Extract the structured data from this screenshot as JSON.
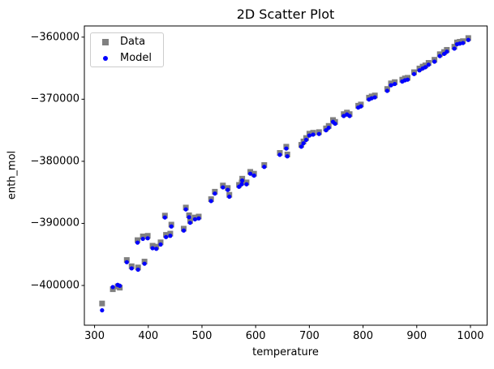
{
  "chart_data": {
    "type": "scatter",
    "title": "2D Scatter Plot",
    "xlabel": "temperature",
    "ylabel": "enth_mol",
    "xlim": [
      281,
      1031
    ],
    "ylim": [
      -406400,
      -358200
    ],
    "grid": false,
    "x_ticks": [
      300,
      400,
      500,
      600,
      700,
      800,
      900,
      1000
    ],
    "x_tick_labels": [
      "300",
      "400",
      "500",
      "600",
      "700",
      "800",
      "900",
      "1000"
    ],
    "y_ticks": [
      -360000,
      -370000,
      -380000,
      -390000,
      -400000
    ],
    "y_tick_labels": [
      "−360000",
      "−370000",
      "−380000",
      "−390000",
      "−400000"
    ],
    "legend": {
      "position": "upper left",
      "entries": [
        {
          "label": "Data",
          "marker": "square",
          "color": "#808080"
        },
        {
          "label": "Model",
          "marker": "dot",
          "color": "#0000ff"
        }
      ]
    },
    "x_shared": [
      314,
      334,
      343,
      347,
      360,
      369,
      381,
      393,
      380,
      390,
      399,
      408,
      415,
      423,
      433,
      441,
      431,
      443,
      466,
      470,
      476,
      478,
      487,
      494,
      517,
      524,
      539,
      548,
      551,
      569,
      574,
      575,
      583,
      590,
      597,
      616,
      645,
      657,
      659,
      685,
      689,
      694,
      700,
      707,
      718,
      731,
      736,
      744,
      748,
      764,
      770,
      775,
      791,
      796,
      811,
      816,
      822,
      845,
      852,
      859,
      873,
      878,
      883,
      895,
      905,
      911,
      916,
      922,
      933,
      943,
      951,
      956,
      970,
      975,
      980,
      986,
      996
    ],
    "series": [
      {
        "name": "Data",
        "marker": "square",
        "color": "#808080",
        "marker_size_px": 7,
        "y": [
          -402900,
          -400600,
          -400150,
          -400350,
          -395900,
          -396900,
          -397100,
          -396150,
          -392700,
          -392100,
          -392000,
          -393600,
          -393750,
          -393050,
          -391850,
          -391650,
          -388750,
          -390200,
          -390850,
          -387450,
          -388700,
          -389600,
          -389050,
          -388900,
          -386100,
          -384900,
          -383900,
          -384300,
          -385400,
          -383800,
          -383400,
          -382800,
          -383400,
          -381700,
          -382000,
          -380600,
          -378650,
          -377650,
          -378900,
          -377350,
          -376800,
          -376250,
          -375550,
          -375400,
          -375300,
          -374700,
          -374300,
          -373350,
          -373650,
          -372400,
          -372150,
          -372400,
          -371050,
          -370850,
          -369750,
          -369550,
          -369400,
          -368350,
          -367450,
          -367250,
          -366850,
          -366650,
          -366550,
          -365650,
          -365050,
          -364750,
          -364550,
          -364150,
          -363650,
          -362750,
          -362400,
          -362050,
          -361550,
          -360850,
          -360750,
          -360650,
          -360150
        ]
      },
      {
        "name": "Model",
        "marker": "dot",
        "color": "#0000ff",
        "marker_size_px": 5,
        "y": [
          -404000,
          -400250,
          -399900,
          -400050,
          -396250,
          -397250,
          -397450,
          -396500,
          -393100,
          -392500,
          -392400,
          -394000,
          -394100,
          -393400,
          -392200,
          -392000,
          -389050,
          -390500,
          -391150,
          -387750,
          -389000,
          -389900,
          -389350,
          -389200,
          -386400,
          -385200,
          -384200,
          -384600,
          -385700,
          -384100,
          -383700,
          -383100,
          -383700,
          -382000,
          -382300,
          -380900,
          -378950,
          -377950,
          -379200,
          -377650,
          -377100,
          -376550,
          -375850,
          -375700,
          -375600,
          -375000,
          -374600,
          -373650,
          -373950,
          -372700,
          -372450,
          -372700,
          -371350,
          -371150,
          -370050,
          -369850,
          -369700,
          -368650,
          -367750,
          -367550,
          -367150,
          -366950,
          -366850,
          -365950,
          -365350,
          -365050,
          -364850,
          -364450,
          -363950,
          -363050,
          -362700,
          -362350,
          -361850,
          -361150,
          -361050,
          -360950,
          -360450
        ]
      }
    ]
  }
}
